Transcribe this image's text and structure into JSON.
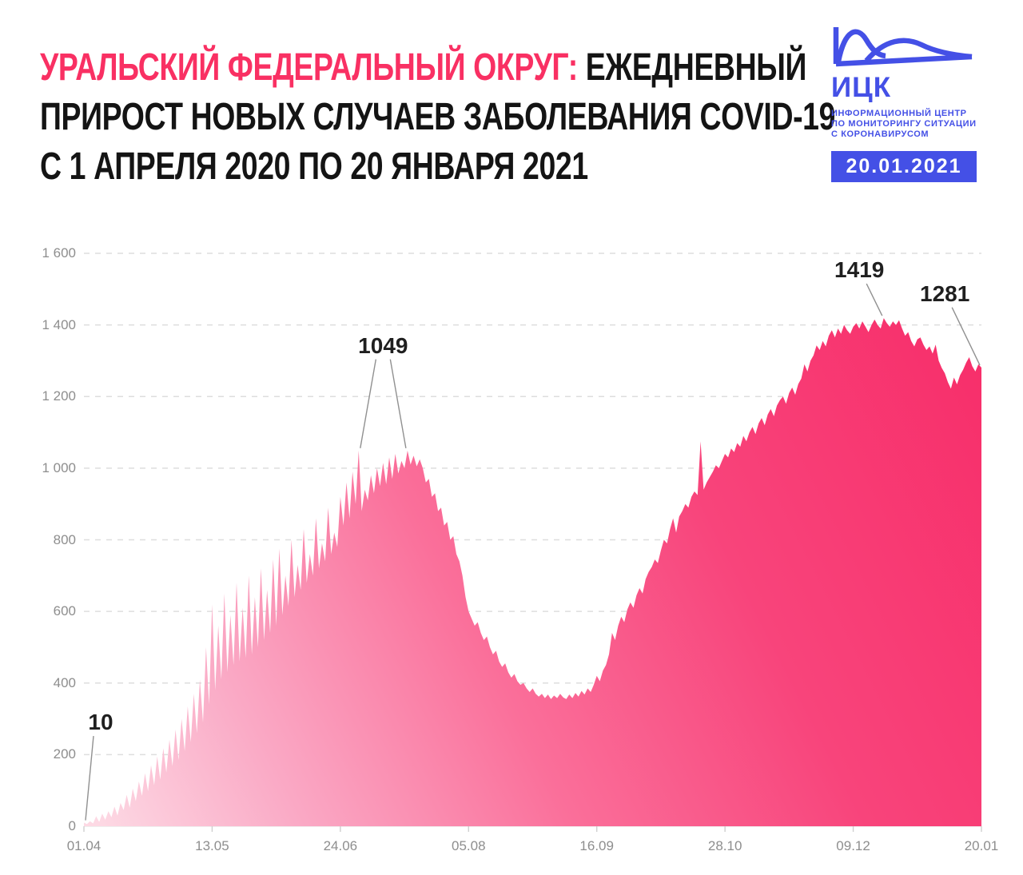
{
  "header": {
    "title_pink": "УРАЛЬСКИЙ ФЕДЕРАЛЬНЫЙ ОКРУГ:",
    "title_black_1": "ЕЖЕДНЕВНЫЙ",
    "title_line2": "ПРИРОСТ НОВЫХ СЛУЧАЕВ ЗАБОЛЕВАНИЯ COVID-19",
    "title_line3": "С 1 АПРЕЛЯ 2020 ПО 20 ЯНВАРЯ 2021"
  },
  "logo": {
    "abbr": "ИЦК",
    "org_lines": [
      "ИНФОРМАЦИОННЫЙ ЦЕНТР",
      "ПО МОНИТОРИНГУ СИТУАЦИИ",
      "С КОРОНАВИРУСОМ"
    ],
    "date_badge": "20.01.2021"
  },
  "colors": {
    "title_pink": "#f93063",
    "logo_blue": "#4450e6",
    "grid": "#dedede",
    "axis_text": "#8e8e8e",
    "annotation_text": "#1f1f1f",
    "leader_line": "#909090",
    "area_gradient": [
      "#fdd9e4",
      "#faa9c5",
      "#fa6f9a",
      "#f8447b",
      "#f72e6a"
    ]
  },
  "chart_data": {
    "type": "area",
    "title": "Ежедневный прирост новых случаев заболевания COVID-19, Уральский федеральный округ, 01.04.2020 – 20.01.2021",
    "start_date": "01.04.2020",
    "end_date": "20.01.2021",
    "x_tick_labels": [
      "01.04",
      "13.05",
      "24.06",
      "05.08",
      "16.09",
      "28.10",
      "09.12",
      "20.01"
    ],
    "x_tick_days": [
      0,
      42,
      84,
      126,
      168,
      210,
      252,
      294
    ],
    "y_max": 1600,
    "y_step": 200,
    "y_tick_labels": [
      "0",
      "200",
      "400",
      "600",
      "800",
      "1 000",
      "1 200",
      "1 400",
      "1 600"
    ],
    "grid": "horizontal-dashed",
    "legend": "none",
    "values": [
      10,
      6,
      14,
      8,
      28,
      12,
      35,
      18,
      42,
      25,
      55,
      30,
      65,
      45,
      88,
      52,
      105,
      70,
      125,
      85,
      148,
      98,
      170,
      115,
      195,
      130,
      218,
      150,
      242,
      168,
      270,
      185,
      300,
      210,
      335,
      235,
      370,
      260,
      410,
      290,
      500,
      340,
      620,
      380,
      560,
      410,
      650,
      430,
      590,
      450,
      680,
      460,
      610,
      470,
      700,
      480,
      640,
      500,
      720,
      520,
      660,
      540,
      745,
      560,
      775,
      590,
      700,
      615,
      800,
      640,
      730,
      660,
      830,
      680,
      760,
      700,
      860,
      720,
      790,
      740,
      890,
      760,
      820,
      780,
      920,
      840,
      960,
      860,
      990,
      900,
      1049,
      880,
      940,
      910,
      980,
      930,
      1000,
      950,
      1015,
      955,
      1030,
      970,
      1040,
      985,
      1020,
      1000,
      1049,
      1010,
      1035,
      1005,
      1025,
      1000,
      960,
      970,
      920,
      930,
      880,
      890,
      840,
      850,
      800,
      810,
      760,
      740,
      700,
      640,
      600,
      580,
      560,
      570,
      540,
      520,
      530,
      500,
      480,
      490,
      460,
      445,
      455,
      430,
      415,
      425,
      405,
      395,
      400,
      385,
      375,
      385,
      370,
      362,
      370,
      358,
      368,
      355,
      365,
      358,
      370,
      360,
      355,
      368,
      358,
      372,
      362,
      378,
      368,
      385,
      375,
      395,
      420,
      405,
      435,
      450,
      480,
      540,
      520,
      560,
      585,
      570,
      605,
      625,
      610,
      645,
      665,
      650,
      690,
      710,
      724,
      745,
      735,
      770,
      800,
      790,
      830,
      860,
      820,
      865,
      880,
      900,
      890,
      920,
      935,
      925,
      1075,
      940,
      960,
      975,
      990,
      1008,
      1000,
      1020,
      1040,
      1030,
      1055,
      1045,
      1070,
      1060,
      1090,
      1075,
      1100,
      1115,
      1095,
      1125,
      1140,
      1120,
      1150,
      1165,
      1145,
      1175,
      1190,
      1200,
      1180,
      1210,
      1225,
      1205,
      1235,
      1250,
      1290,
      1270,
      1300,
      1315,
      1343,
      1330,
      1355,
      1340,
      1370,
      1385,
      1365,
      1390,
      1375,
      1400,
      1385,
      1375,
      1395,
      1405,
      1390,
      1410,
      1395,
      1380,
      1400,
      1415,
      1400,
      1390,
      1419,
      1405,
      1395,
      1410,
      1400,
      1413,
      1390,
      1370,
      1380,
      1355,
      1340,
      1360,
      1365,
      1345,
      1330,
      1340,
      1320,
      1345,
      1300,
      1280,
      1265,
      1240,
      1222,
      1253,
      1234,
      1260,
      1275,
      1295,
      1310,
      1285,
      1270,
      1290,
      1281
    ],
    "annotations": [
      {
        "text": "10",
        "label_at": {
          "day": 5.5,
          "value": 290
        },
        "targets": [
          {
            "day": 0,
            "value": 10
          }
        ]
      },
      {
        "text": "1049",
        "label_at": {
          "day": 98,
          "value": 1342
        },
        "targets": [
          {
            "day": 90,
            "value": 1049
          },
          {
            "day": 106,
            "value": 1049
          }
        ]
      },
      {
        "text": "1419",
        "label_at": {
          "day": 254,
          "value": 1553
        },
        "targets": [
          {
            "day": 262,
            "value": 1419
          }
        ]
      },
      {
        "text": "1281",
        "label_at": {
          "day": 282,
          "value": 1487
        },
        "targets": [
          {
            "day": 294,
            "value": 1281
          }
        ]
      }
    ]
  }
}
